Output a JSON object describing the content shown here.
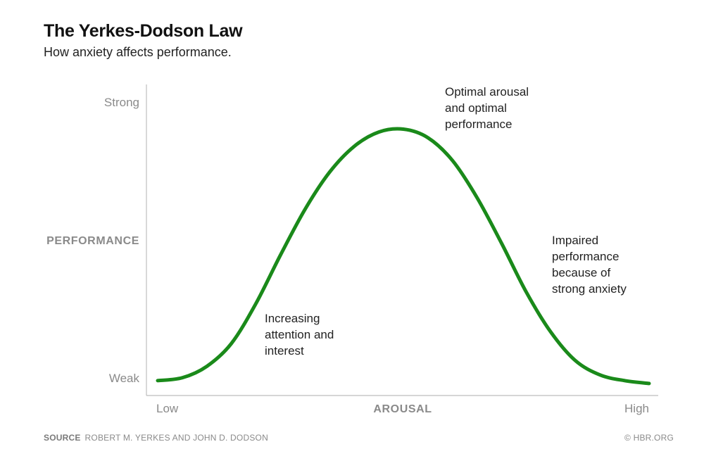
{
  "header": {
    "title": "The Yerkes-Dodson Law",
    "subtitle": "How anxiety affects performance."
  },
  "chart_data": {
    "type": "line",
    "title": "The Yerkes-Dodson Law",
    "subtitle": "How anxiety affects performance.",
    "xlabel": "AROUSAL",
    "ylabel": "PERFORMANCE",
    "x_ticks": [
      "Low",
      "High"
    ],
    "y_ticks": [
      "Weak",
      "Strong"
    ],
    "xlim": [
      0,
      1
    ],
    "ylim": [
      0,
      1
    ],
    "grid": false,
    "series": [
      {
        "color": "#1a8a1a",
        "x": [
          0.0,
          0.05,
          0.1,
          0.15,
          0.2,
          0.25,
          0.3,
          0.35,
          0.4,
          0.45,
          0.5,
          0.55,
          0.6,
          0.65,
          0.7,
          0.75,
          0.8,
          0.85,
          0.9,
          0.95,
          1.0
        ],
        "y": [
          0.03,
          0.04,
          0.08,
          0.16,
          0.3,
          0.47,
          0.63,
          0.76,
          0.85,
          0.9,
          0.91,
          0.88,
          0.8,
          0.67,
          0.51,
          0.34,
          0.2,
          0.1,
          0.05,
          0.03,
          0.02
        ]
      }
    ],
    "annotations": [
      {
        "lines": [
          "Optimal arousal",
          "and optimal",
          "performance"
        ]
      },
      {
        "lines": [
          "Impaired",
          "performance",
          "because of",
          "strong anxiety"
        ]
      },
      {
        "lines": [
          "Increasing",
          "attention and",
          "interest"
        ]
      }
    ]
  },
  "footer": {
    "source_label": "SOURCE",
    "source_text": "ROBERT M. YERKES AND JOHN D. DODSON",
    "copyright": "© HBR.ORG"
  }
}
